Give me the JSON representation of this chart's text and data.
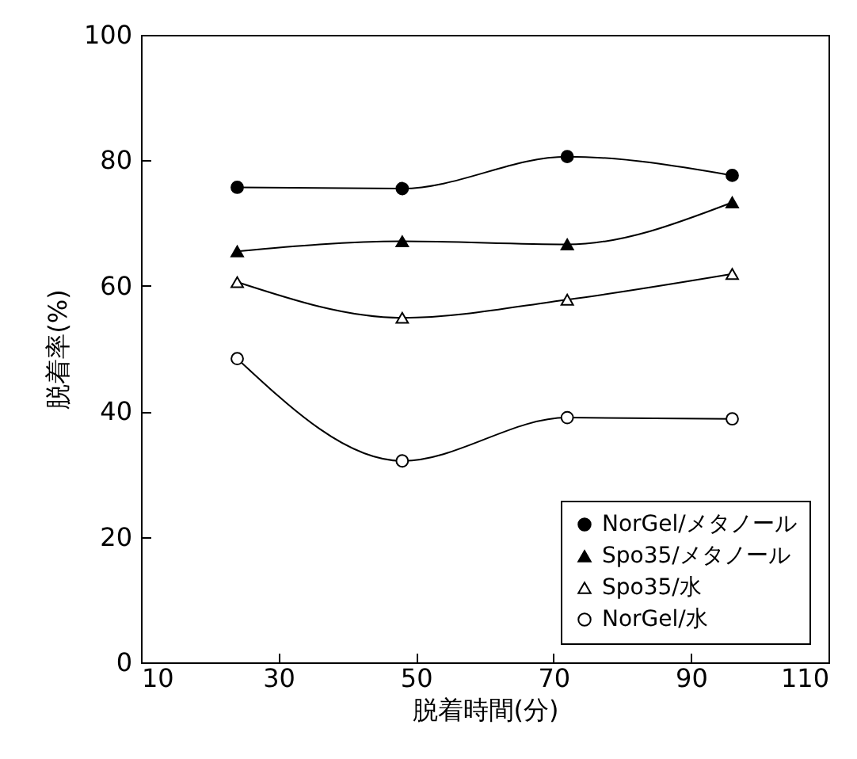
{
  "chart_data": {
    "type": "line",
    "xlabel": "脱着時間(分)",
    "ylabel": "脱着率(%)",
    "x": [
      24,
      48,
      72,
      96
    ],
    "xlim": [
      10,
      110
    ],
    "xticks": [
      10,
      30,
      50,
      70,
      90,
      110
    ],
    "ylim": [
      0,
      100
    ],
    "yticks": [
      0,
      20,
      40,
      60,
      80,
      100
    ],
    "grid": false,
    "legend": "bottom right",
    "line_style": "solid",
    "series": [
      {
        "name": "NorGel/メタノール",
        "color": "#000000",
        "marker": "circle",
        "values": [
          75.7,
          75.5,
          80.6,
          77.6
        ]
      },
      {
        "name": "Spo35/メタノール",
        "color": "#000000",
        "marker": "triangle",
        "values": [
          65.5,
          67.1,
          66.6,
          73.3
        ]
      },
      {
        "name": "Spo35/水",
        "color": "#000000",
        "marker": "triangle-open",
        "values": [
          60.6,
          54.9,
          57.8,
          61.9
        ]
      },
      {
        "name": "NorGel/水",
        "color": "#000000",
        "marker": "circle-open",
        "values": [
          48.4,
          32.1,
          39.0,
          38.8
        ]
      }
    ]
  }
}
